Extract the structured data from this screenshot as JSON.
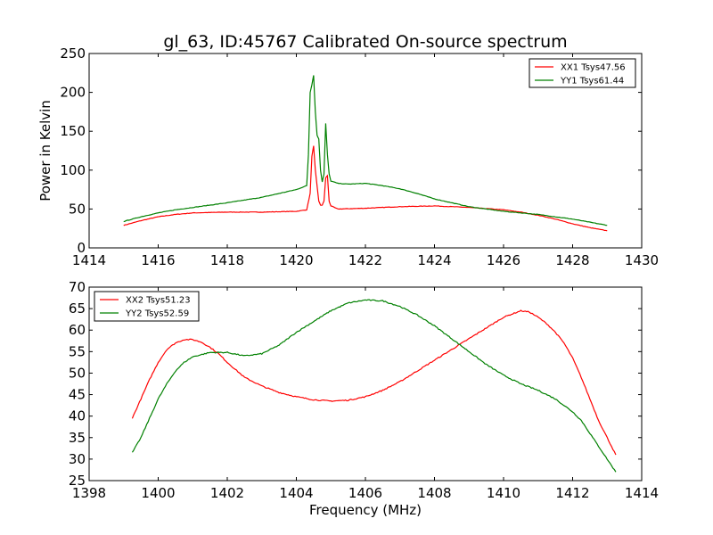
{
  "figure_title": "gl_63, ID:45767 Calibrated On-source spectrum",
  "colors": {
    "red": "#ff0000",
    "green": "#008000"
  },
  "chart_data": [
    {
      "type": "line",
      "title": "gl_63, ID:45767 Calibrated On-source spectrum",
      "xlabel": "",
      "ylabel": "Power in Kelvin",
      "xlim": [
        1414,
        1430
      ],
      "ylim": [
        0,
        250
      ],
      "xticks": [
        1414,
        1416,
        1418,
        1420,
        1422,
        1424,
        1426,
        1428,
        1430
      ],
      "yticks": [
        0,
        50,
        100,
        150,
        200,
        250
      ],
      "legend_position": "top-right",
      "series": [
        {
          "name": "XX1 Tsys47.56",
          "color": "#ff0000",
          "x": [
            1415.0,
            1415.5,
            1416.0,
            1416.5,
            1417.0,
            1418.0,
            1419.0,
            1420.0,
            1420.3,
            1420.4,
            1420.45,
            1420.5,
            1420.55,
            1420.6,
            1420.65,
            1420.7,
            1420.75,
            1420.8,
            1420.85,
            1420.9,
            1420.95,
            1421.0,
            1421.2,
            1422.0,
            1423.0,
            1424.0,
            1425.0,
            1426.0,
            1426.5,
            1427.0,
            1427.5,
            1428.0,
            1428.5,
            1429.0
          ],
          "y": [
            29,
            35,
            40,
            43,
            45,
            46,
            46,
            47,
            49,
            70,
            118,
            131,
            100,
            80,
            60,
            55,
            55,
            60,
            90,
            93,
            60,
            54,
            50,
            51,
            53,
            54,
            52,
            49,
            46,
            42,
            37,
            31,
            26,
            22
          ]
        },
        {
          "name": "YY1 Tsys61.44",
          "color": "#008000",
          "x": [
            1415.0,
            1415.5,
            1416.0,
            1416.5,
            1417.0,
            1418.0,
            1419.0,
            1419.5,
            1420.0,
            1420.3,
            1420.35,
            1420.4,
            1420.45,
            1420.5,
            1420.55,
            1420.6,
            1420.65,
            1420.7,
            1420.75,
            1420.8,
            1420.85,
            1420.9,
            1420.95,
            1421.0,
            1421.2,
            1421.5,
            1422.0,
            1422.5,
            1423.0,
            1423.5,
            1424.0,
            1425.0,
            1426.0,
            1427.0,
            1428.0,
            1429.0
          ],
          "y": [
            34,
            40,
            45,
            49,
            52,
            58,
            65,
            70,
            75,
            80,
            120,
            200,
            210,
            222,
            175,
            145,
            140,
            100,
            85,
            95,
            160,
            120,
            95,
            86,
            83,
            82,
            83,
            80,
            76,
            70,
            63,
            53,
            47,
            43,
            37,
            29
          ]
        }
      ]
    },
    {
      "type": "line",
      "title": "",
      "xlabel": "Frequency (MHz)",
      "ylabel": "",
      "xlim": [
        1398,
        1414
      ],
      "ylim": [
        25,
        70
      ],
      "xticks": [
        1398,
        1400,
        1402,
        1404,
        1406,
        1408,
        1410,
        1412,
        1414
      ],
      "yticks": [
        25,
        30,
        35,
        40,
        45,
        50,
        55,
        60,
        65,
        70
      ],
      "legend_position": "top-left",
      "series": [
        {
          "name": "XX2 Tsys51.23",
          "color": "#ff0000",
          "x": [
            1399.25,
            1399.5,
            1399.75,
            1400.0,
            1400.25,
            1400.5,
            1400.75,
            1401.0,
            1401.25,
            1401.5,
            1401.75,
            1402.0,
            1402.5,
            1403.0,
            1403.5,
            1404.0,
            1404.5,
            1405.0,
            1405.5,
            1406.0,
            1406.5,
            1407.0,
            1407.5,
            1408.0,
            1408.5,
            1409.0,
            1409.5,
            1410.0,
            1410.5,
            1410.75,
            1411.0,
            1411.25,
            1411.5,
            1411.75,
            1412.0,
            1412.25,
            1412.5,
            1412.75,
            1413.0,
            1413.25
          ],
          "y": [
            39.5,
            44.0,
            48.5,
            52.5,
            55.5,
            57.0,
            57.8,
            57.8,
            57.2,
            56.0,
            54.5,
            52.5,
            49.0,
            47.0,
            45.5,
            44.5,
            43.8,
            43.5,
            43.7,
            44.5,
            46.0,
            48.0,
            50.5,
            53.0,
            55.5,
            58.0,
            60.5,
            63.0,
            64.5,
            64.2,
            63.0,
            61.5,
            59.5,
            57.0,
            53.5,
            49.0,
            44.0,
            39.0,
            35.0,
            31.0
          ]
        },
        {
          "name": "YY2 Tsys52.59",
          "color": "#008000",
          "x": [
            1399.25,
            1399.5,
            1399.75,
            1400.0,
            1400.25,
            1400.5,
            1400.75,
            1401.0,
            1401.5,
            1402.0,
            1402.5,
            1403.0,
            1403.5,
            1404.0,
            1404.5,
            1405.0,
            1405.5,
            1406.0,
            1406.5,
            1407.0,
            1407.5,
            1408.0,
            1408.5,
            1409.0,
            1409.5,
            1410.0,
            1410.5,
            1411.0,
            1411.5,
            1412.0,
            1412.25,
            1412.5,
            1412.75,
            1413.0,
            1413.25
          ],
          "y": [
            31.5,
            35.0,
            39.5,
            44.0,
            47.5,
            50.5,
            52.5,
            53.8,
            54.8,
            54.8,
            54.0,
            54.5,
            56.5,
            59.5,
            62.0,
            64.5,
            66.3,
            67.0,
            66.8,
            65.5,
            63.5,
            61.0,
            58.0,
            55.0,
            52.0,
            49.5,
            47.5,
            46.0,
            44.0,
            41.0,
            39.0,
            36.0,
            33.0,
            30.0,
            27.0
          ]
        }
      ]
    }
  ]
}
